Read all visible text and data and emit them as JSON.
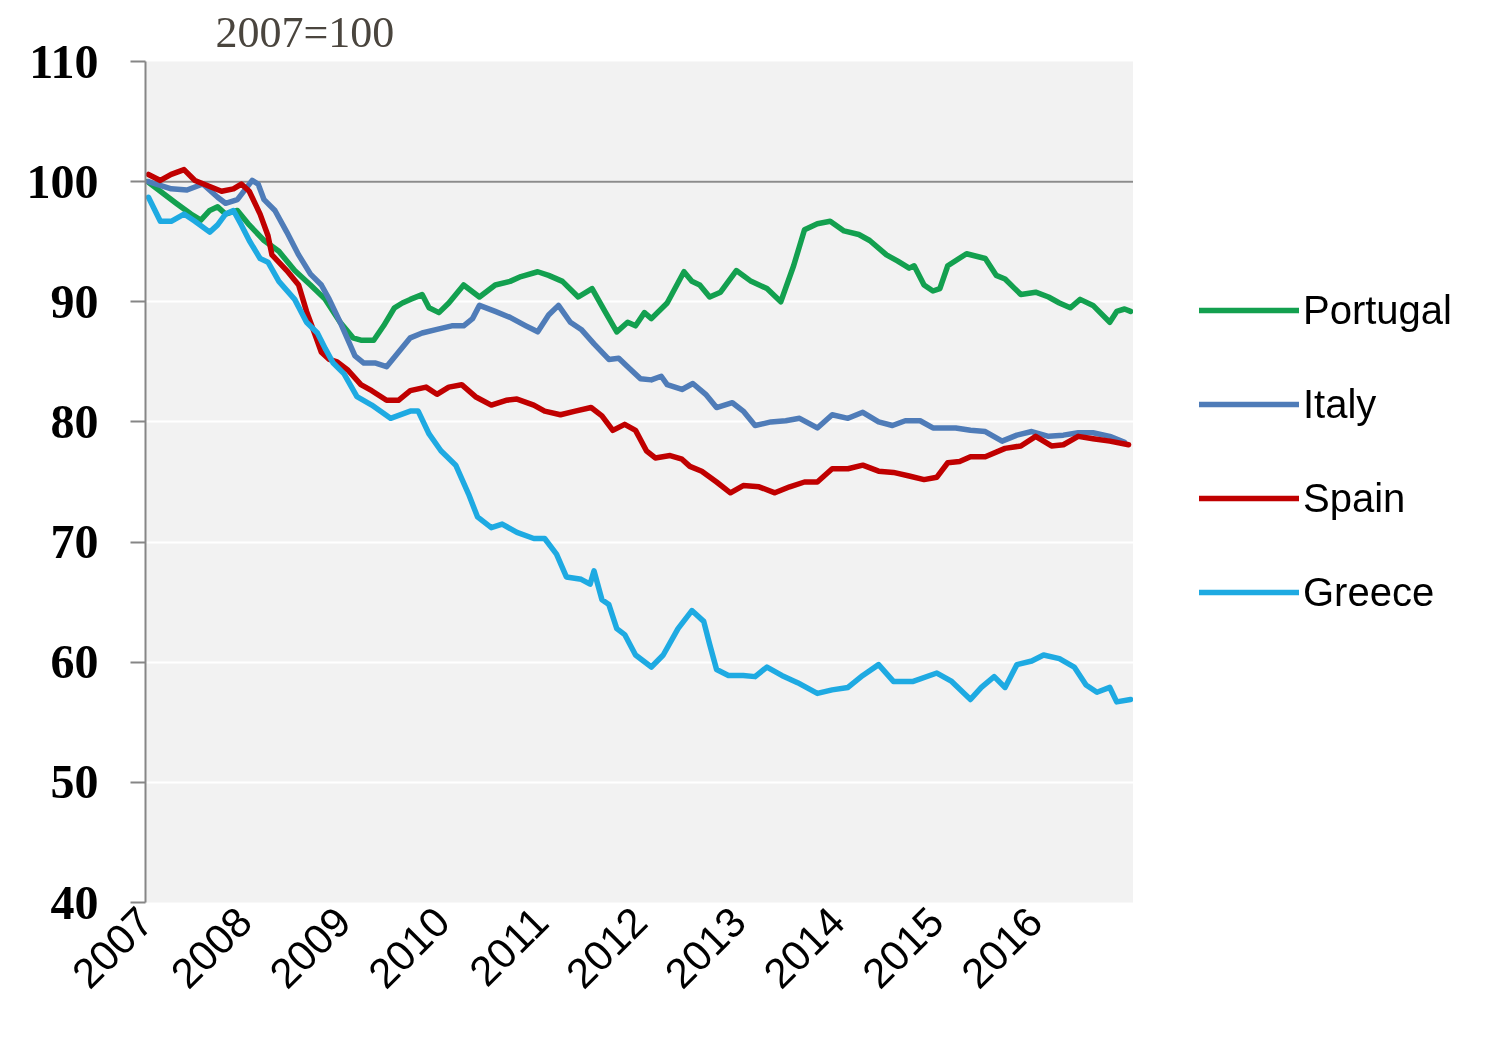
{
  "chart_data": {
    "type": "line",
    "title": "2007=100",
    "xlim": [
      2007,
      2017
    ],
    "xticks": [
      2007,
      2008,
      2009,
      2010,
      2011,
      2012,
      2013,
      2014,
      2015,
      2016
    ],
    "ylim": [
      40,
      110
    ],
    "yticks": [
      40,
      50,
      60,
      70,
      80,
      90,
      100,
      110
    ],
    "grid": "y",
    "legend": "right",
    "ref_lines": [
      {
        "axis": "y",
        "value": 100,
        "color": "#8c8c8c"
      }
    ],
    "series": [
      {
        "name": "Portugal",
        "color": "#13a04f",
        "x": [
          2007.02,
          2007.15,
          2007.31,
          2007.46,
          2007.56,
          2007.65,
          2007.73,
          2007.81,
          2007.93,
          2008.05,
          2008.2,
          2008.35,
          2008.51,
          2008.67,
          2008.82,
          2008.97,
          2009.1,
          2009.18,
          2009.31,
          2009.41,
          2009.52,
          2009.6,
          2009.68,
          2009.8,
          2009.87,
          2009.97,
          2010.07,
          2010.22,
          2010.38,
          2010.54,
          2010.69,
          2010.8,
          2010.97,
          2011.08,
          2011.22,
          2011.38,
          2011.52,
          2011.65,
          2011.77,
          2011.88,
          2011.96,
          2012.05,
          2012.12,
          2012.28,
          2012.45,
          2012.53,
          2012.61,
          2012.71,
          2012.82,
          2012.98,
          2013.13,
          2013.29,
          2013.43,
          2013.56,
          2013.67,
          2013.8,
          2013.93,
          2014.07,
          2014.22,
          2014.33,
          2014.5,
          2014.61,
          2014.73,
          2014.78,
          2014.88,
          2014.97,
          2015.04,
          2015.12,
          2015.31,
          2015.5,
          2015.61,
          2015.7,
          2015.86,
          2016.01,
          2016.14,
          2016.25,
          2016.36,
          2016.46,
          2016.59,
          2016.76,
          2016.83,
          2016.91,
          2016.97
        ],
        "values": [
          100.0,
          99.2,
          98.2,
          97.3,
          96.8,
          97.6,
          97.9,
          97.3,
          97.6,
          96.4,
          95.1,
          94.2,
          92.6,
          91.4,
          90.2,
          88.3,
          87.0,
          86.8,
          86.8,
          88.0,
          89.5,
          89.9,
          90.2,
          90.6,
          89.5,
          89.1,
          89.9,
          91.4,
          90.4,
          91.4,
          91.7,
          92.1,
          92.5,
          92.2,
          91.7,
          90.4,
          91.1,
          89.2,
          87.5,
          88.3,
          88.0,
          89.1,
          88.6,
          89.9,
          92.5,
          91.7,
          91.4,
          90.4,
          90.8,
          92.6,
          91.7,
          91.1,
          90.0,
          93.0,
          96.0,
          96.5,
          96.7,
          95.9,
          95.6,
          95.1,
          93.9,
          93.4,
          92.8,
          93.0,
          91.4,
          90.9,
          91.1,
          93.0,
          94.0,
          93.6,
          92.2,
          91.9,
          90.6,
          90.8,
          90.4,
          89.9,
          89.5,
          90.2,
          89.7,
          88.3,
          89.2,
          89.4,
          89.2
        ]
      },
      {
        "name": "Italy",
        "color": "#4f7cb8",
        "x": [
          2007.03,
          2007.26,
          2007.42,
          2007.58,
          2007.73,
          2007.81,
          2007.93,
          2008.08,
          2008.14,
          2008.2,
          2008.31,
          2008.43,
          2008.55,
          2008.67,
          2008.78,
          2008.86,
          2008.97,
          2009.12,
          2009.21,
          2009.33,
          2009.44,
          2009.56,
          2009.68,
          2009.8,
          2009.95,
          2010.1,
          2010.22,
          2010.31,
          2010.38,
          2010.54,
          2010.69,
          2010.85,
          2010.97,
          2011.08,
          2011.18,
          2011.3,
          2011.41,
          2011.54,
          2011.69,
          2011.79,
          2011.88,
          2012.01,
          2012.12,
          2012.22,
          2012.28,
          2012.43,
          2012.54,
          2012.67,
          2012.78,
          2012.94,
          2013.05,
          2013.17,
          2013.33,
          2013.48,
          2013.62,
          2013.8,
          2013.95,
          2014.11,
          2014.26,
          2014.42,
          2014.56,
          2014.69,
          2014.84,
          2014.97,
          2015.08,
          2015.2,
          2015.35,
          2015.5,
          2015.67,
          2015.82,
          2015.97,
          2016.14,
          2016.29,
          2016.44,
          2016.59,
          2016.76,
          2016.91
        ],
        "values": [
          100.0,
          99.4,
          99.3,
          99.8,
          98.7,
          98.2,
          98.5,
          100.1,
          99.8,
          98.5,
          97.6,
          95.8,
          93.9,
          92.3,
          91.4,
          90.2,
          88.3,
          85.5,
          84.9,
          84.9,
          84.6,
          85.8,
          87.0,
          87.4,
          87.7,
          88.0,
          88.0,
          88.6,
          89.7,
          89.2,
          88.7,
          88.0,
          87.5,
          88.9,
          89.7,
          88.3,
          87.7,
          86.5,
          85.2,
          85.3,
          84.6,
          83.6,
          83.5,
          83.8,
          83.1,
          82.7,
          83.2,
          82.3,
          81.2,
          81.6,
          80.9,
          79.7,
          80.0,
          80.1,
          80.3,
          79.5,
          80.6,
          80.3,
          80.8,
          80.0,
          79.7,
          80.1,
          80.1,
          79.5,
          79.5,
          79.5,
          79.3,
          79.2,
          78.4,
          78.9,
          79.2,
          78.8,
          78.9,
          79.1,
          79.1,
          78.8,
          78.3
        ]
      },
      {
        "name": "Spain",
        "color": "#c00000",
        "x": [
          2007.03,
          2007.15,
          2007.26,
          2007.39,
          2007.5,
          2007.65,
          2007.77,
          2007.89,
          2007.97,
          2008.05,
          2008.16,
          2008.24,
          2008.28,
          2008.43,
          2008.55,
          2008.63,
          2008.71,
          2008.78,
          2008.86,
          2008.94,
          2009.05,
          2009.18,
          2009.29,
          2009.44,
          2009.56,
          2009.68,
          2009.84,
          2009.95,
          2010.07,
          2010.2,
          2010.34,
          2010.5,
          2010.65,
          2010.76,
          2010.93,
          2011.04,
          2011.2,
          2011.35,
          2011.51,
          2011.62,
          2011.73,
          2011.85,
          2011.96,
          2012.07,
          2012.16,
          2012.31,
          2012.43,
          2012.51,
          2012.63,
          2012.78,
          2012.92,
          2013.05,
          2013.21,
          2013.37,
          2013.52,
          2013.67,
          2013.8,
          2013.95,
          2014.11,
          2014.26,
          2014.42,
          2014.57,
          2014.73,
          2014.88,
          2015.01,
          2015.12,
          2015.24,
          2015.35,
          2015.5,
          2015.7,
          2015.86,
          2016.01,
          2016.17,
          2016.29,
          2016.44,
          2016.59,
          2016.76,
          2016.95
        ],
        "values": [
          100.6,
          100.1,
          100.6,
          101.0,
          100.1,
          99.6,
          99.2,
          99.4,
          99.8,
          99.2,
          97.3,
          95.5,
          93.9,
          92.6,
          91.4,
          89.2,
          87.4,
          85.8,
          85.2,
          85.0,
          84.3,
          83.1,
          82.6,
          81.8,
          81.8,
          82.6,
          82.9,
          82.3,
          82.9,
          83.1,
          82.1,
          81.4,
          81.8,
          81.9,
          81.4,
          80.9,
          80.6,
          80.9,
          81.2,
          80.5,
          79.3,
          79.8,
          79.3,
          77.6,
          77.0,
          77.2,
          76.9,
          76.3,
          75.9,
          75.0,
          74.1,
          74.7,
          74.6,
          74.1,
          74.6,
          75.0,
          75.0,
          76.1,
          76.1,
          76.4,
          75.9,
          75.8,
          75.5,
          75.2,
          75.4,
          76.6,
          76.7,
          77.1,
          77.1,
          77.8,
          78.0,
          78.8,
          78.0,
          78.1,
          78.8,
          78.6,
          78.4,
          78.1
        ]
      },
      {
        "name": "Greece",
        "color": "#1eaae2",
        "x": [
          2007.03,
          2007.15,
          2007.26,
          2007.39,
          2007.5,
          2007.65,
          2007.73,
          2007.81,
          2007.89,
          2007.97,
          2008.05,
          2008.16,
          2008.24,
          2008.35,
          2008.51,
          2008.63,
          2008.74,
          2008.82,
          2008.9,
          2009.01,
          2009.14,
          2009.29,
          2009.48,
          2009.68,
          2009.76,
          2009.87,
          2009.99,
          2010.14,
          2010.27,
          2010.36,
          2010.5,
          2010.61,
          2010.76,
          2010.93,
          2011.04,
          2011.16,
          2011.26,
          2011.41,
          2011.5,
          2011.54,
          2011.62,
          2011.69,
          2011.77,
          2011.85,
          2011.96,
          2012.12,
          2012.24,
          2012.39,
          2012.53,
          2012.65,
          2012.71,
          2012.78,
          2012.9,
          2013.05,
          2013.17,
          2013.29,
          2013.44,
          2013.6,
          2013.8,
          2013.95,
          2014.11,
          2014.26,
          2014.42,
          2014.57,
          2014.77,
          2015.01,
          2015.16,
          2015.35,
          2015.46,
          2015.59,
          2015.7,
          2015.82,
          2015.97,
          2016.09,
          2016.25,
          2016.4,
          2016.52,
          2016.63,
          2016.76,
          2016.83,
          2016.97
        ],
        "values": [
          98.7,
          96.7,
          96.7,
          97.3,
          96.7,
          95.8,
          96.4,
          97.3,
          97.6,
          96.4,
          95.1,
          93.6,
          93.3,
          91.7,
          90.2,
          88.3,
          87.4,
          86.1,
          84.9,
          84.0,
          82.1,
          81.4,
          80.3,
          80.9,
          80.9,
          79.0,
          77.6,
          76.4,
          74.0,
          72.1,
          71.2,
          71.5,
          70.8,
          70.3,
          70.3,
          69.0,
          67.1,
          66.9,
          66.5,
          67.6,
          65.2,
          64.8,
          62.8,
          62.3,
          60.6,
          59.6,
          60.6,
          62.8,
          64.3,
          63.4,
          61.5,
          59.4,
          58.9,
          58.9,
          58.8,
          59.6,
          58.9,
          58.3,
          57.4,
          57.7,
          57.9,
          58.9,
          59.8,
          58.4,
          58.4,
          59.1,
          58.4,
          56.9,
          57.9,
          58.8,
          57.9,
          59.8,
          60.1,
          60.6,
          60.3,
          59.6,
          58.1,
          57.5,
          57.9,
          56.7,
          56.9
        ]
      }
    ]
  }
}
